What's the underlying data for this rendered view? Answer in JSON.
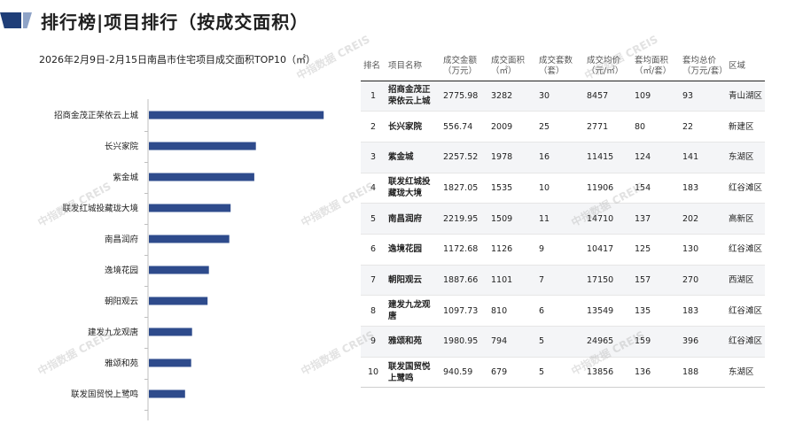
{
  "page_title": "排行榜|项目排行（按成交面积）",
  "watermark": "中指数据 CREIS",
  "chart_data": {
    "type": "bar",
    "orientation": "horizontal",
    "title": "2026年2月9日-2月15日南昌市住宅项目成交面积TOP10（㎡）",
    "categories": [
      "招商金茂正荣依云上城",
      "长兴家院",
      "紫金城",
      "联发红城投藏珑大境",
      "南昌润府",
      "逸境花园",
      "朝阳观云",
      "建发九龙观唐",
      "雅颂和苑",
      "联发国贸悦上鹭鸣"
    ],
    "values": [
      3282,
      2009,
      1978,
      1535,
      1509,
      1126,
      1101,
      810,
      794,
      679
    ],
    "xlim": [
      0,
      3500
    ],
    "bar_color": "#2e4b8c",
    "grid": false
  },
  "table": {
    "headers": [
      {
        "line1": "排名",
        "line2": ""
      },
      {
        "line1": "项目名称",
        "line2": ""
      },
      {
        "line1": "成交金额",
        "line2": "（万元）"
      },
      {
        "line1": "成交面积",
        "line2": "（㎡）"
      },
      {
        "line1": "成交套数",
        "line2": "（套）"
      },
      {
        "line1": "成交均价",
        "line2": "（元/㎡）"
      },
      {
        "line1": "套均面积",
        "line2": "（㎡/套）"
      },
      {
        "line1": "套均总价",
        "line2": "（万元/套）"
      },
      {
        "line1": "区域",
        "line2": ""
      }
    ],
    "rows": [
      [
        "1",
        "招商金茂正荣依云上城",
        "2775.98",
        "3282",
        "30",
        "8457",
        "109",
        "93",
        "青山湖区"
      ],
      [
        "2",
        "长兴家院",
        "556.74",
        "2009",
        "25",
        "2771",
        "80",
        "22",
        "新建区"
      ],
      [
        "3",
        "紫金城",
        "2257.52",
        "1978",
        "16",
        "11415",
        "124",
        "141",
        "东湖区"
      ],
      [
        "4",
        "联发红城投藏珑大境",
        "1827.05",
        "1535",
        "10",
        "11906",
        "154",
        "183",
        "红谷滩区"
      ],
      [
        "5",
        "南昌润府",
        "2219.95",
        "1509",
        "11",
        "14710",
        "137",
        "202",
        "高新区"
      ],
      [
        "6",
        "逸境花园",
        "1172.68",
        "1126",
        "9",
        "10417",
        "125",
        "130",
        "红谷滩区"
      ],
      [
        "7",
        "朝阳观云",
        "1887.66",
        "1101",
        "7",
        "17150",
        "157",
        "270",
        "西湖区"
      ],
      [
        "8",
        "建发九龙观唐",
        "1097.73",
        "810",
        "6",
        "13549",
        "135",
        "183",
        "红谷滩区"
      ],
      [
        "9",
        "雅颂和苑",
        "1980.95",
        "794",
        "5",
        "24965",
        "159",
        "396",
        "红谷滩区"
      ],
      [
        "10",
        "联发国贸悦上鹭鸣",
        "940.59",
        "679",
        "5",
        "13856",
        "136",
        "188",
        "东湖区"
      ]
    ]
  }
}
